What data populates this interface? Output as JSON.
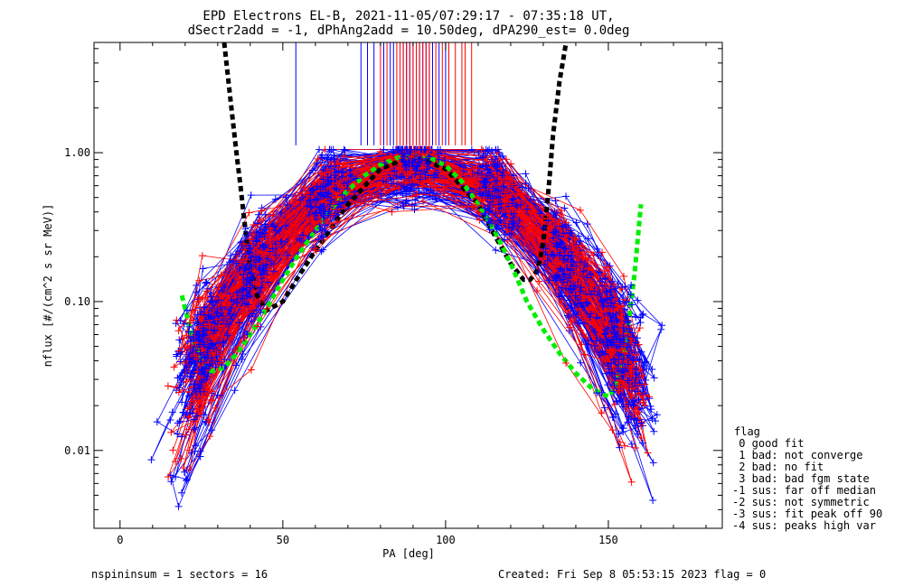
{
  "chart_data": {
    "type": "scatter",
    "title_line1": "EPD Electrons EL-B, 2021-11-05/07:29:17 - 07:35:18 UT,",
    "title_line2": "dSectr2add = -1, dPhAng2add = 10.50deg, dPA290_est=   0.0deg",
    "xlabel": "PA [deg]",
    "ylabel": "nflux [#/(cm^2 s sr MeV)]",
    "xlim": [
      -8,
      185
    ],
    "ylim": [
      0.003,
      5.5
    ],
    "yscale": "log",
    "x_ticks": [
      0,
      50,
      100,
      150
    ],
    "x_tick_labels": [
      "0",
      "50",
      "100",
      "150"
    ],
    "y_ticks": [
      0.01,
      0.1,
      1.0
    ],
    "y_tick_labels": [
      "0.01",
      "0.10",
      "1.00"
    ],
    "grid": false,
    "legend_position": "right, outside plot",
    "legend_title": "flag",
    "legend_entries": [
      " 0 good fit",
      " 1 bad: not converge",
      " 2 bad: no fit",
      " 3 bad: bad fgm state",
      "-1 sus: far off median",
      "-2 sus: not symmetric",
      "-3 sus: fit peak off 90",
      "-4 sus: peaks high var"
    ],
    "footer_left": "nspininsum =  1  sectors = 16",
    "footer_right": "Created: Fri Sep  8 05:53:15 2023   flag = 0",
    "colors": {
      "blue_series": "#0000ff",
      "red_series": "#ff0000",
      "fit_curve": "#00ee00",
      "threshold_curve": "#000000"
    },
    "fit_curve": {
      "x": [
        19,
        22,
        25,
        28,
        32,
        36,
        40,
        45,
        50,
        55,
        60,
        65,
        70,
        75,
        80,
        85,
        90,
        95,
        100,
        105,
        110,
        115,
        120,
        125,
        130,
        135,
        140,
        145,
        150,
        152,
        155,
        158,
        160
      ],
      "y": [
        0.11,
        0.06,
        0.04,
        0.034,
        0.036,
        0.045,
        0.06,
        0.09,
        0.14,
        0.21,
        0.3,
        0.42,
        0.56,
        0.7,
        0.83,
        0.92,
        0.96,
        0.93,
        0.82,
        0.64,
        0.45,
        0.3,
        0.18,
        0.1,
        0.065,
        0.045,
        0.033,
        0.026,
        0.023,
        0.026,
        0.045,
        0.15,
        0.45
      ]
    },
    "threshold_curve": {
      "x": [
        32,
        34,
        36,
        37,
        38,
        39,
        40,
        42,
        45,
        50,
        55,
        60,
        70,
        80,
        90,
        100,
        110,
        115,
        120,
        124,
        126,
        128,
        129,
        130,
        131,
        132,
        133,
        135,
        137
      ],
      "y": [
        5.5,
        2.2,
        0.9,
        0.6,
        0.38,
        0.25,
        0.17,
        0.11,
        0.087,
        0.1,
        0.15,
        0.22,
        0.45,
        0.78,
        0.95,
        0.78,
        0.45,
        0.28,
        0.18,
        0.14,
        0.14,
        0.16,
        0.19,
        0.25,
        0.4,
        0.7,
        1.3,
        3.0,
        5.5
      ]
    },
    "vertical_markers": {
      "top": 5.5,
      "bottom": 1.12,
      "blue_x": [
        54,
        74,
        76,
        78,
        81,
        83,
        84,
        86,
        87,
        88,
        89,
        90,
        91,
        92,
        93,
        94,
        95,
        96,
        98,
        100
      ],
      "red_x": [
        80,
        82,
        85,
        86,
        87,
        88,
        89,
        90,
        91,
        92,
        93,
        94,
        95,
        97,
        99,
        101,
        103,
        105,
        106,
        108
      ]
    }
  }
}
